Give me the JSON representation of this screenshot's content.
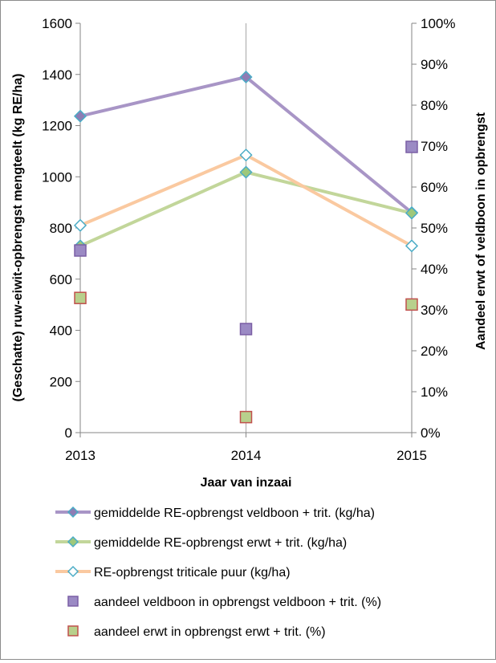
{
  "chart_data": {
    "type": "line",
    "x": [
      "2013",
      "2014",
      "2015"
    ],
    "xlabel": "Jaar van inzaai",
    "ylabel": "(Geschatte) ruw-eiwit-opbrengst  mengteelt (kg RE/ha)",
    "y2label": "Aandeel erwt of veldboon in opbrengst",
    "ylim": [
      0,
      1600
    ],
    "yticks": [
      "0",
      "200",
      "400",
      "600",
      "800",
      "1000",
      "1200",
      "1400",
      "1600"
    ],
    "y2lim": [
      0,
      100
    ],
    "y2ticks": [
      "0%",
      "10%",
      "20%",
      "30%",
      "40%",
      "50%",
      "60%",
      "70%",
      "80%",
      "90%",
      "100%"
    ],
    "grid": "vertical",
    "legend_position": "bottom",
    "series": [
      {
        "name": "gemiddelde RE-opbrengst veldboon + trit. (kg/ha)",
        "kind": "line",
        "axis": "left",
        "color": "#a895c6",
        "marker": "diamond",
        "marker_color": "#8e7cb4",
        "values": [
          1237,
          1390,
          860
        ]
      },
      {
        "name": "gemiddelde RE-opbrengst erwt + trit. (kg/ha)",
        "kind": "line",
        "axis": "left",
        "color": "#c2d69a",
        "marker": "diamond",
        "marker_color": "#9ec87a",
        "values": [
          730,
          1018,
          858
        ]
      },
      {
        "name": "RE-opbrengst triticale puur (kg/ha)",
        "kind": "line",
        "axis": "left",
        "color": "#fac9a0",
        "marker": "diamond",
        "marker_color": "#ffffff",
        "values": [
          810,
          1085,
          730
        ]
      },
      {
        "name": "aandeel veldboon in opbrengst veldboon + trit. (%)",
        "kind": "scatter",
        "axis": "right",
        "color": "#9b8ac4",
        "marker": "square",
        "marker_stroke": "#7b5fa5",
        "values": [
          44.5,
          25.3,
          69.8
        ]
      },
      {
        "name": "aandeel erwt in opbrengst erwt + trit. (%)",
        "kind": "scatter",
        "axis": "right",
        "color": "#b8d08c",
        "marker": "square",
        "marker_stroke": "#c0504d",
        "values": [
          32.9,
          3.8,
          31.3
        ]
      }
    ]
  }
}
